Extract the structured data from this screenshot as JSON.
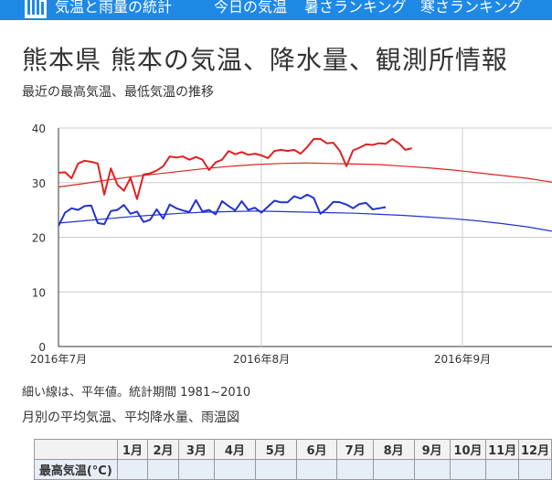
{
  "nav": {
    "site_title": "気温と雨量の統計",
    "items": [
      "今日の気温",
      "暑さランキング",
      "寒さランキング"
    ]
  },
  "page": {
    "title": "熊本県 熊本の気温、降水量、観測所情報",
    "subtitle": "最近の最高気温、最低気温の推移",
    "note": "細い線は、平年値。統計期間 1981~2010",
    "section_title": "月別の平均気温、平均降水量、雨温図"
  },
  "colors": {
    "nav_bg": "#1e88e5",
    "high": "#dd2222",
    "low": "#2233cc"
  },
  "chart_data": {
    "type": "line",
    "title": "",
    "xlabel": "",
    "ylabel": "",
    "ylim": [
      0,
      40
    ],
    "yticks": [
      0,
      10,
      20,
      30,
      40
    ],
    "grid": true,
    "x_ticks": [
      "2016年7月",
      "2016年8月",
      "2016年9月"
    ],
    "series": [
      {
        "color": "#dd2222",
        "style": "daily",
        "start_day": 0,
        "values": [
          31.8,
          31.9,
          30.8,
          33.5,
          34.0,
          33.8,
          33.5,
          27.8,
          32.6,
          29.6,
          28.5,
          30.9,
          27.0,
          31.5,
          31.7,
          32.2,
          33.0,
          34.8,
          34.6,
          34.8,
          34.2,
          34.7,
          34.2,
          32.3,
          33.7,
          34.2,
          35.8,
          35.2,
          35.6,
          35.1,
          35.3,
          35.0,
          34.5,
          35.8,
          36.0,
          35.8,
          36.0,
          35.3,
          36.5,
          38.0,
          38.0,
          37.2,
          37.3,
          35.8,
          33.0,
          35.9,
          36.4,
          37.0,
          36.9,
          37.2,
          37.1,
          38.0,
          37.2,
          36.0,
          36.3
        ]
      },
      {
        "color": "#2233cc",
        "style": "daily",
        "start_day": 0,
        "values": [
          22.1,
          24.5,
          25.3,
          25.0,
          25.7,
          25.8,
          22.6,
          22.4,
          24.8,
          25.0,
          25.9,
          24.3,
          24.7,
          22.8,
          23.2,
          25.1,
          23.4,
          26.0,
          25.3,
          24.9,
          24.6,
          26.8,
          24.7,
          25.0,
          24.2,
          26.6,
          25.7,
          24.9,
          26.6,
          25.0,
          25.4,
          24.5,
          25.6,
          26.7,
          26.4,
          26.4,
          27.5,
          27.1,
          27.8,
          27.2,
          24.3,
          25.2,
          26.5,
          26.4,
          26.0,
          25.3,
          26.1,
          26.3,
          25.1,
          25.3,
          25.5
        ]
      },
      {
        "color": "#dd2222",
        "style": "normal",
        "start_day": 0,
        "values": [
          29.2,
          29.8,
          30.5,
          31.1,
          31.6,
          32.1,
          32.6,
          33.0,
          33.3,
          33.5,
          33.6,
          33.5,
          33.4,
          33.3,
          33.0,
          32.7,
          32.3,
          31.8,
          31.3,
          30.8,
          30.1
        ]
      },
      {
        "color": "#2233cc",
        "style": "normal",
        "start_day": 0,
        "values": [
          22.6,
          23.0,
          23.4,
          23.8,
          24.1,
          24.4,
          24.6,
          24.7,
          24.8,
          24.7,
          24.6,
          24.5,
          24.4,
          24.2,
          24.0,
          23.7,
          23.4,
          23.0,
          22.5,
          21.9,
          21.1
        ]
      }
    ]
  },
  "table": {
    "months": [
      "1月",
      "2月",
      "3月",
      "4月",
      "5月",
      "6月",
      "7月",
      "8月",
      "9月",
      "10月",
      "11月",
      "12月"
    ],
    "row1_label": "最高気温(°C)"
  }
}
